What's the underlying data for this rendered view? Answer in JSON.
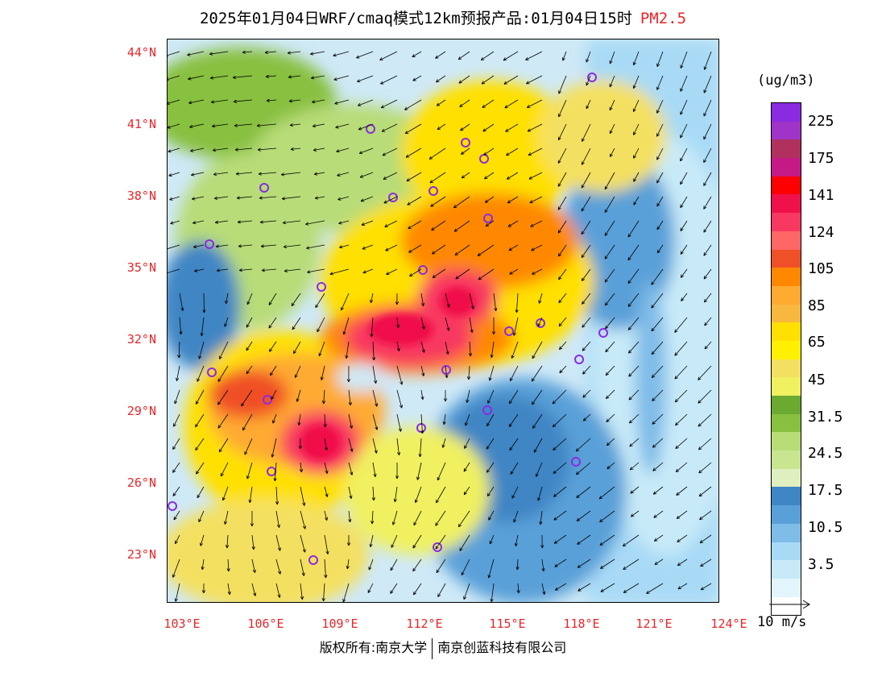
{
  "header": {
    "title": "2025年01月04日WRF/cmaq模式12km预报产品:01月04日15时",
    "pollutant": "PM2.5"
  },
  "axes": {
    "lat_labels": [
      "44°N",
      "41°N",
      "38°N",
      "35°N",
      "32°N",
      "29°N",
      "26°N",
      "23°N"
    ],
    "lon_labels": [
      "103°E",
      "106°E",
      "109°E",
      "112°E",
      "115°E",
      "118°E",
      "121°E",
      "124°E"
    ]
  },
  "legend": {
    "unit": "(ug/m3)",
    "ticks": [
      "225",
      "175",
      "141",
      "124",
      "105",
      "85",
      "65",
      "45",
      "31.5",
      "24.5",
      "17.5",
      "10.5",
      "3.5"
    ],
    "colors": [
      "#8a2be2",
      "#a033c8",
      "#b0305e",
      "#c51a86",
      "#ff0000",
      "#f0104a",
      "#f83860",
      "#ff6666",
      "#f05028",
      "#ff8800",
      "#ffaa30",
      "#f8b840",
      "#ffe000",
      "#fff000",
      "#f4e060",
      "#f0f060",
      "#6aaa30",
      "#88c040",
      "#b8dc78",
      "#c8e690",
      "#e0efc0",
      "#3f86c4",
      "#5aa0d8",
      "#7fbce8",
      "#a8daf6",
      "#c8eaf8",
      "#e2f4fc",
      "#ffffff"
    ],
    "wind_scale_label": "10 m/s"
  },
  "footer": {
    "left": "版权所有:南京大学",
    "right": "南京创蓝科技有限公司"
  }
}
